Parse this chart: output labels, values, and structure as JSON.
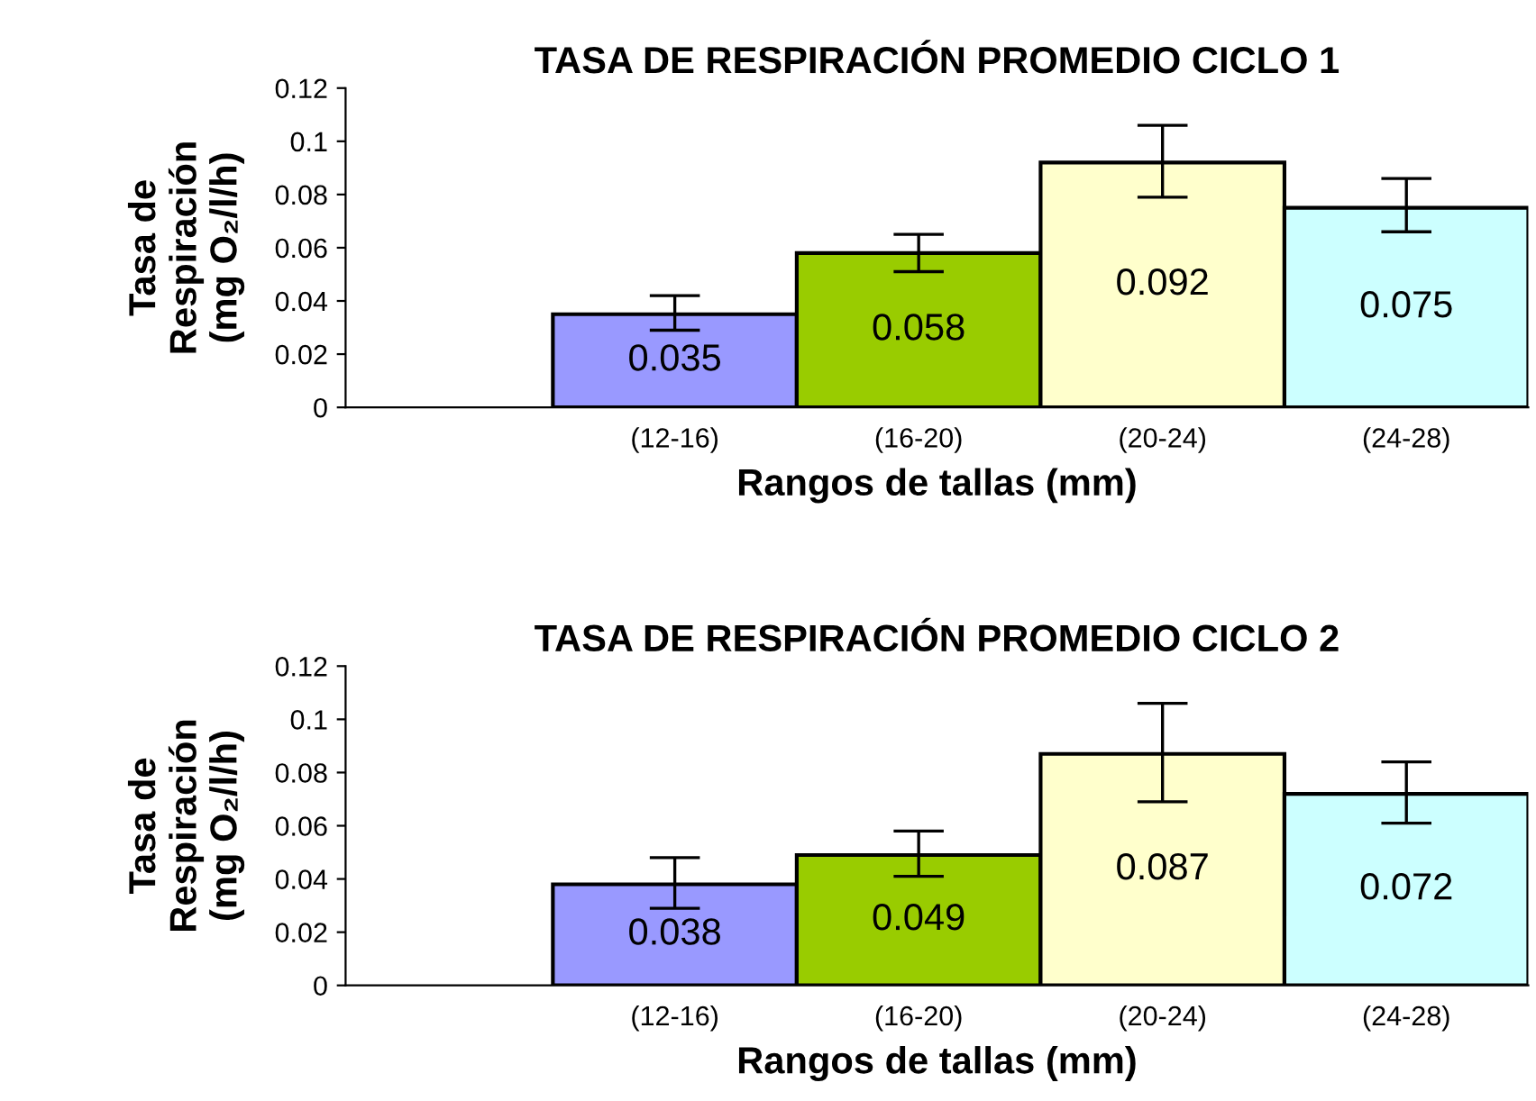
{
  "chart_data": [
    {
      "type": "bar",
      "title": "TASA DE RESPIRACIÓN PROMEDIO CICLO 1",
      "xlabel": "Rangos de tallas (mm)",
      "ylabel": "Tasa de\nRespiración\n(mg O₂/l/h)",
      "categories": [
        "(12-16)",
        "(16-20)",
        "(20-24)",
        "(24-28)"
      ],
      "values": [
        0.035,
        0.058,
        0.092,
        0.075
      ],
      "colors": [
        "#9999ff",
        "#99cc00",
        "#ffffcc",
        "#ccffff"
      ],
      "errors": [
        [
          0.029,
          0.042
        ],
        [
          0.051,
          0.065
        ],
        [
          0.079,
          0.106
        ],
        [
          0.066,
          0.086
        ]
      ],
      "data_labels": true,
      "ylim": [
        0,
        0.12
      ],
      "yticks": [
        0,
        0.02,
        0.04,
        0.06,
        0.08,
        0.1,
        0.12
      ],
      "grid": false,
      "legend": false
    },
    {
      "type": "bar",
      "title": "TASA DE RESPIRACIÓN PROMEDIO CICLO 2",
      "xlabel": "Rangos de tallas (mm)",
      "ylabel": "Tasa de\nRespiración\n(mg O₂/l/h)",
      "categories": [
        "(12-16)",
        "(16-20)",
        "(20-24)",
        "(24-28)"
      ],
      "values": [
        0.038,
        0.049,
        0.087,
        0.072
      ],
      "colors": [
        "#9999ff",
        "#99cc00",
        "#ffffcc",
        "#ccffff"
      ],
      "errors": [
        [
          0.029,
          0.048
        ],
        [
          0.041,
          0.058
        ],
        [
          0.069,
          0.106
        ],
        [
          0.061,
          0.084
        ]
      ],
      "data_labels": true,
      "ylim": [
        0,
        0.12
      ],
      "yticks": [
        0,
        0.02,
        0.04,
        0.06,
        0.08,
        0.1,
        0.12
      ],
      "grid": false,
      "legend": false
    }
  ]
}
